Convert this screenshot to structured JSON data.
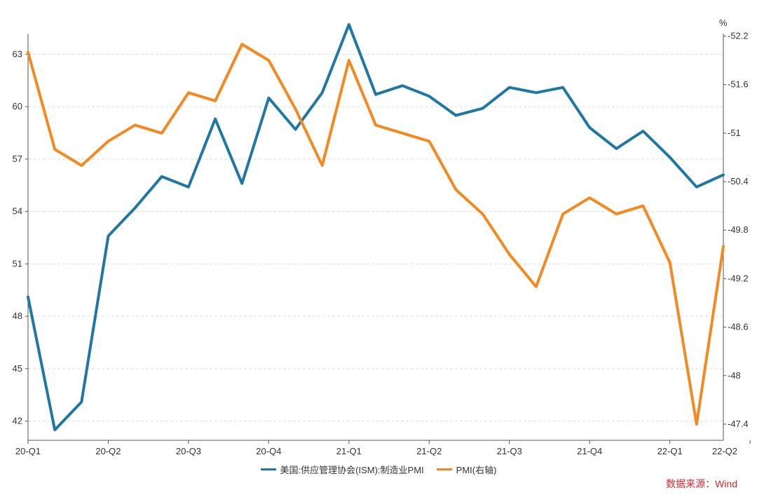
{
  "chart_data": {
    "type": "line",
    "x_tick_labels": [
      "20-Q1",
      "20-Q2",
      "20-Q3",
      "20-Q4",
      "21-Q1",
      "21-Q2",
      "21-Q3",
      "21-Q4",
      "22-Q1",
      "22-Q2"
    ],
    "right_axis_unit": "%",
    "left_axis": {
      "ylim": [
        40.9,
        64.5
      ],
      "ticks": [
        42,
        45,
        48,
        51,
        54,
        57,
        60,
        63
      ]
    },
    "right_axis": {
      "ylim": [
        47.2,
        52.3
      ],
      "ticks": [
        47.4,
        48,
        48.6,
        49.2,
        49.8,
        50.4,
        51,
        51.6,
        52.2
      ],
      "tick_labels": [
        "47.4",
        "48",
        "48.6",
        "49.2",
        "49.8",
        "50.4",
        "51",
        "51.6",
        "52.2"
      ]
    },
    "grid": "horizontal dashed",
    "legend_position": "bottom",
    "series": [
      {
        "name": "美国:供应管理协会(ISM):制造业PMI",
        "axis": "left",
        "color": "#1f77a4",
        "values": [
          49.1,
          41.5,
          43.1,
          52.6,
          54.2,
          56.0,
          55.4,
          59.3,
          55.6,
          60.5,
          58.7,
          60.8,
          64.7,
          60.7,
          61.2,
          60.6,
          59.5,
          59.9,
          61.1,
          60.8,
          61.1,
          58.8,
          57.6,
          58.6,
          57.1,
          55.4,
          56.1
        ]
      },
      {
        "name": "PMI(右轴)",
        "axis": "right",
        "color": "#f5891f",
        "values": [
          52.0,
          50.8,
          50.6,
          50.9,
          51.1,
          51.0,
          51.5,
          51.4,
          52.1,
          51.9,
          51.3,
          50.6,
          51.9,
          51.1,
          51.0,
          50.9,
          50.3,
          50.0,
          49.5,
          49.1,
          50.0,
          50.2,
          50.0,
          50.1,
          49.4,
          47.4,
          49.6
        ]
      }
    ]
  },
  "source_text": "数据来源：Wind"
}
